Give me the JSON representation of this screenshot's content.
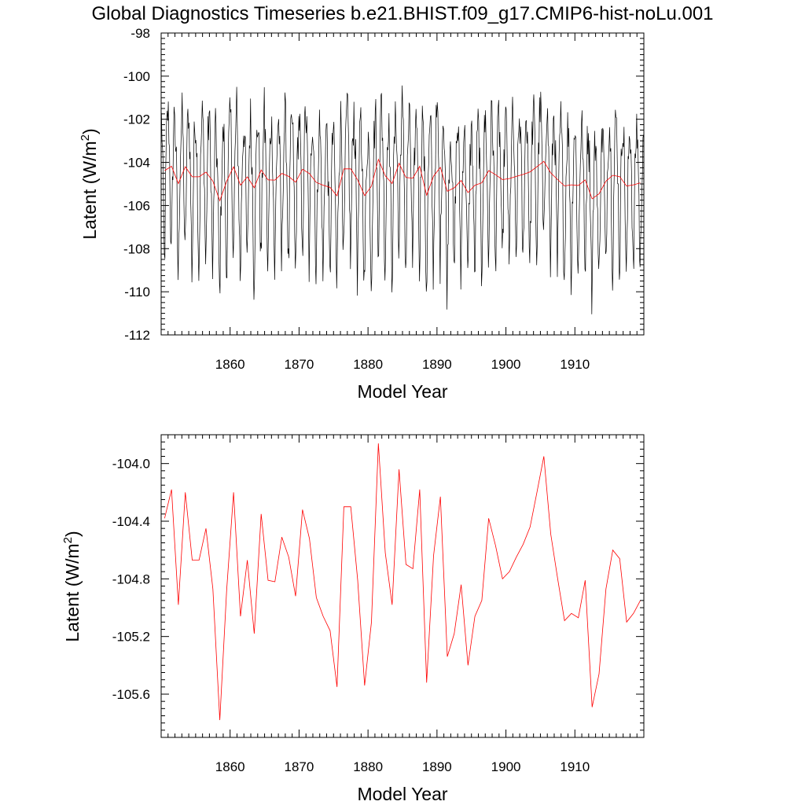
{
  "figure": {
    "title": "Global Diagnostics Timeseries b.e21.BHIST.f09_g17.CMIP6-hist-noLu.001"
  },
  "chart_data": [
    {
      "type": "line",
      "xlabel": "Model Year",
      "ylabel": "Latent (W/m²)",
      "ylabel_base": "Latent (W/m",
      "ylabel_sup": "2",
      "ylabel_end": ")",
      "xlim": [
        1850,
        1920
      ],
      "ylim": [
        -112,
        -98
      ],
      "xticks": [
        1860,
        1870,
        1880,
        1890,
        1900,
        1910
      ],
      "xtick_labels": [
        "1860",
        "1870",
        "1880",
        "1890",
        "1900",
        "1910"
      ],
      "yticks": [
        -112,
        -110,
        -108,
        -106,
        -104,
        -102,
        -100,
        -98
      ],
      "ytick_labels": [
        "-112",
        "-110",
        "-108",
        "-106",
        "-104",
        "-102",
        "-100",
        "-98"
      ],
      "grid": false,
      "series": [
        {
          "kind": "monthly",
          "color": "#000000",
          "start_year": 1850,
          "monthly_climatology": [
            -102.4,
            -102.9,
            -104.0,
            -105.6,
            -107.5,
            -109.0,
            -108.0,
            -106.0,
            -104.4,
            -103.2,
            -102.5,
            -102.0
          ]
        },
        {
          "kind": "annual",
          "color": "#ff0000",
          "x": [
            1850.5,
            1851.5,
            1852.5,
            1853.5,
            1854.5,
            1855.5,
            1856.5,
            1857.5,
            1858.5,
            1859.5,
            1860.5,
            1861.5,
            1862.5,
            1863.5,
            1864.5,
            1865.5,
            1866.5,
            1867.5,
            1868.5,
            1869.5,
            1870.5,
            1871.5,
            1872.5,
            1873.5,
            1874.5,
            1875.5,
            1876.5,
            1877.5,
            1878.5,
            1879.5,
            1880.5,
            1881.5,
            1882.5,
            1883.5,
            1884.5,
            1885.5,
            1886.5,
            1887.5,
            1888.5,
            1889.5,
            1890.5,
            1891.5,
            1892.5,
            1893.5,
            1894.5,
            1895.5,
            1896.5,
            1897.5,
            1898.5,
            1899.5,
            1900.5,
            1901.5,
            1902.5,
            1903.5,
            1904.5,
            1905.5,
            1906.5,
            1907.5,
            1908.5,
            1909.5,
            1910.5,
            1911.5,
            1912.5,
            1913.5,
            1914.5,
            1915.5,
            1916.5,
            1917.5,
            1918.5,
            1919.5
          ],
          "values": [
            -104.38,
            -104.18,
            -104.98,
            -104.2,
            -104.67,
            -104.67,
            -104.45,
            -104.87,
            -105.78,
            -104.88,
            -104.2,
            -105.06,
            -104.67,
            -105.18,
            -104.35,
            -104.81,
            -104.82,
            -104.51,
            -104.65,
            -104.92,
            -104.32,
            -104.52,
            -104.93,
            -105.06,
            -105.16,
            -105.55,
            -104.3,
            -104.3,
            -104.81,
            -105.54,
            -105.1,
            -103.86,
            -104.62,
            -104.98,
            -104.04,
            -104.7,
            -104.73,
            -104.18,
            -105.52,
            -104.64,
            -104.23,
            -105.34,
            -105.18,
            -104.84,
            -105.4,
            -105.06,
            -104.95,
            -104.38,
            -104.57,
            -104.8,
            -104.75,
            -104.65,
            -104.56,
            -104.44,
            -104.2,
            -103.95,
            -104.49,
            -104.8,
            -105.09,
            -105.04,
            -105.07,
            -104.81,
            -105.69,
            -105.46,
            -104.87,
            -104.6,
            -104.66,
            -105.1,
            -105.04,
            -104.95
          ]
        }
      ]
    },
    {
      "type": "line",
      "xlabel": "Model Year",
      "ylabel": "Latent (W/m²)",
      "ylabel_base": "Latent (W/m",
      "ylabel_sup": "2",
      "ylabel_end": ")",
      "xlim": [
        1850,
        1920
      ],
      "ylim": [
        -105.9,
        -103.8
      ],
      "xticks": [
        1860,
        1870,
        1880,
        1890,
        1900,
        1910
      ],
      "xtick_labels": [
        "1860",
        "1870",
        "1880",
        "1890",
        "1900",
        "1910"
      ],
      "yticks": [
        -105.6,
        -105.2,
        -104.8,
        -104.4,
        -104.0
      ],
      "ytick_labels": [
        "-105.6",
        "-105.2",
        "-104.8",
        "-104.4",
        "-104.0"
      ],
      "grid": false,
      "series": [
        {
          "kind": "annual",
          "color": "#ff0000",
          "x": [
            1850.5,
            1851.5,
            1852.5,
            1853.5,
            1854.5,
            1855.5,
            1856.5,
            1857.5,
            1858.5,
            1859.5,
            1860.5,
            1861.5,
            1862.5,
            1863.5,
            1864.5,
            1865.5,
            1866.5,
            1867.5,
            1868.5,
            1869.5,
            1870.5,
            1871.5,
            1872.5,
            1873.5,
            1874.5,
            1875.5,
            1876.5,
            1877.5,
            1878.5,
            1879.5,
            1880.5,
            1881.5,
            1882.5,
            1883.5,
            1884.5,
            1885.5,
            1886.5,
            1887.5,
            1888.5,
            1889.5,
            1890.5,
            1891.5,
            1892.5,
            1893.5,
            1894.5,
            1895.5,
            1896.5,
            1897.5,
            1898.5,
            1899.5,
            1900.5,
            1901.5,
            1902.5,
            1903.5,
            1904.5,
            1905.5,
            1906.5,
            1907.5,
            1908.5,
            1909.5,
            1910.5,
            1911.5,
            1912.5,
            1913.5,
            1914.5,
            1915.5,
            1916.5,
            1917.5,
            1918.5,
            1919.5
          ],
          "values": [
            -104.38,
            -104.18,
            -104.98,
            -104.2,
            -104.67,
            -104.67,
            -104.45,
            -104.87,
            -105.78,
            -104.88,
            -104.2,
            -105.06,
            -104.67,
            -105.18,
            -104.35,
            -104.81,
            -104.82,
            -104.51,
            -104.65,
            -104.92,
            -104.32,
            -104.52,
            -104.93,
            -105.06,
            -105.16,
            -105.55,
            -104.3,
            -104.3,
            -104.81,
            -105.54,
            -105.1,
            -103.86,
            -104.62,
            -104.98,
            -104.04,
            -104.7,
            -104.73,
            -104.18,
            -105.52,
            -104.64,
            -104.23,
            -105.34,
            -105.18,
            -104.84,
            -105.4,
            -105.06,
            -104.95,
            -104.38,
            -104.57,
            -104.8,
            -104.75,
            -104.65,
            -104.56,
            -104.44,
            -104.2,
            -103.95,
            -104.49,
            -104.8,
            -105.09,
            -105.04,
            -105.07,
            -104.81,
            -105.69,
            -105.46,
            -104.87,
            -104.6,
            -104.66,
            -105.1,
            -105.04,
            -104.95
          ]
        }
      ]
    }
  ]
}
